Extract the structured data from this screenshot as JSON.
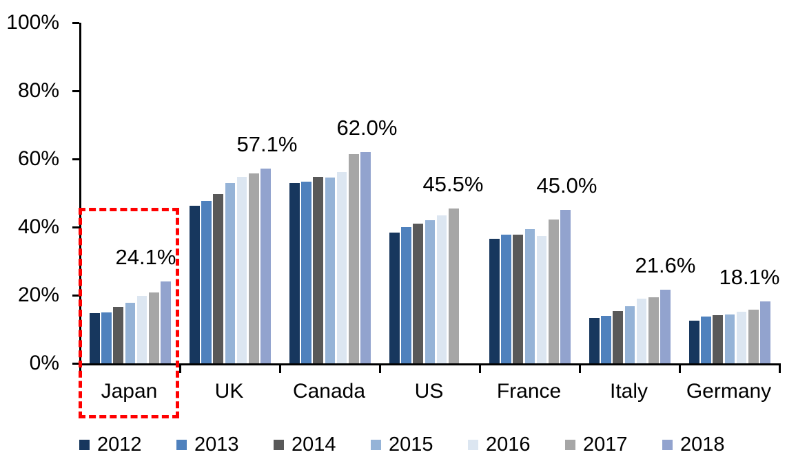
{
  "chart_data": {
    "type": "bar",
    "title": "",
    "categories": [
      "Japan",
      "UK",
      "Canada",
      "US",
      "France",
      "Italy",
      "Germany"
    ],
    "series": [
      {
        "name": "2012",
        "color": "#17375E",
        "values": [
          14.8,
          46.3,
          53.0,
          38.3,
          36.5,
          13.3,
          12.5
        ]
      },
      {
        "name": "2013",
        "color": "#4F81BD",
        "values": [
          15.0,
          47.7,
          53.3,
          40.0,
          37.8,
          14.0,
          13.8
        ]
      },
      {
        "name": "2014",
        "color": "#595959",
        "values": [
          16.6,
          49.7,
          54.8,
          41.0,
          37.8,
          15.3,
          14.2
        ]
      },
      {
        "name": "2015",
        "color": "#95B3D7",
        "values": [
          17.8,
          52.9,
          54.5,
          42.1,
          39.4,
          16.8,
          14.4
        ]
      },
      {
        "name": "2016",
        "color": "#DCE6F1",
        "values": [
          19.8,
          54.7,
          56.2,
          43.5,
          37.3,
          19.0,
          15.2
        ]
      },
      {
        "name": "2017",
        "color": "#A6A6A6",
        "values": [
          20.9,
          55.8,
          61.5,
          45.5,
          42.3,
          19.3,
          15.7
        ]
      },
      {
        "name": "2018",
        "color": "#92A3CE",
        "values": [
          24.1,
          57.1,
          62.0,
          null,
          45.0,
          21.6,
          18.1
        ]
      }
    ],
    "callouts": [
      "24.1%",
      "57.1%",
      "62.0%",
      "45.5%",
      "45.0%",
      "21.6%",
      "18.1%"
    ],
    "y_axis": {
      "min": 0,
      "max": 100,
      "step": 20,
      "tick_labels": [
        "0%",
        "20%",
        "40%",
        "60%",
        "80%",
        "100%"
      ]
    },
    "x_axis": {
      "label": ""
    },
    "grid": false,
    "legend_position": "bottom",
    "highlight": {
      "target": "Japan",
      "style": "red-dashed-box",
      "color": "#FF0000",
      "note": "dashed rectangle encloses Japan bars and its category label"
    }
  }
}
